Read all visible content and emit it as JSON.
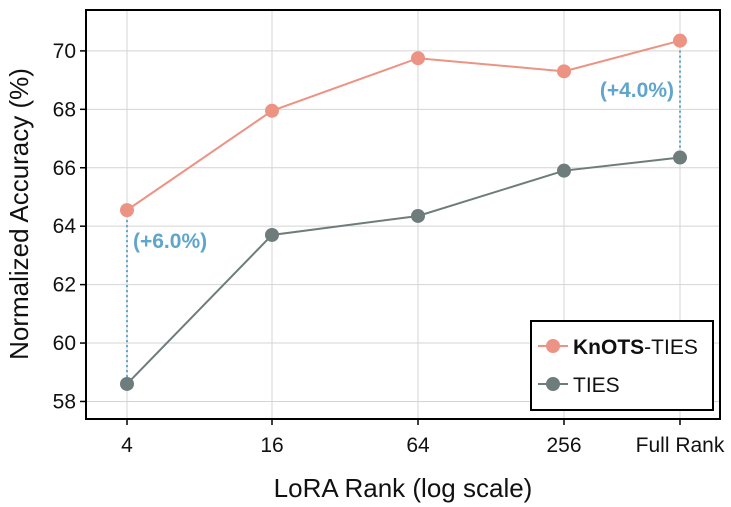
{
  "chart_data": {
    "type": "line",
    "title": "",
    "xlabel": "LoRA Rank (log scale)",
    "ylabel": "Normalized Accuracy (%)",
    "categories": [
      "4",
      "16",
      "64",
      "256",
      "Full Rank"
    ],
    "ylim": [
      57.4,
      71.4
    ],
    "yticks": [
      58,
      60,
      62,
      64,
      66,
      68,
      70
    ],
    "grid": true,
    "series": [
      {
        "name_bold": "KnOTS",
        "name_rest": "-TIES",
        "color": "#ec9384",
        "values": [
          64.55,
          67.95,
          69.75,
          69.3,
          70.35
        ]
      },
      {
        "name_bold": "",
        "name_rest": "TIES",
        "color": "#6e7d7b",
        "values": [
          58.6,
          63.7,
          64.35,
          65.9,
          66.35
        ]
      }
    ],
    "annotations": [
      {
        "category_index": 0,
        "text": "(+6.0%)",
        "color": "#5fa5cc",
        "placement": "right"
      },
      {
        "category_index": 4,
        "text": "(+4.0%)",
        "color": "#5fa5cc",
        "placement": "left"
      }
    ],
    "legend_position": "bottom-right"
  }
}
